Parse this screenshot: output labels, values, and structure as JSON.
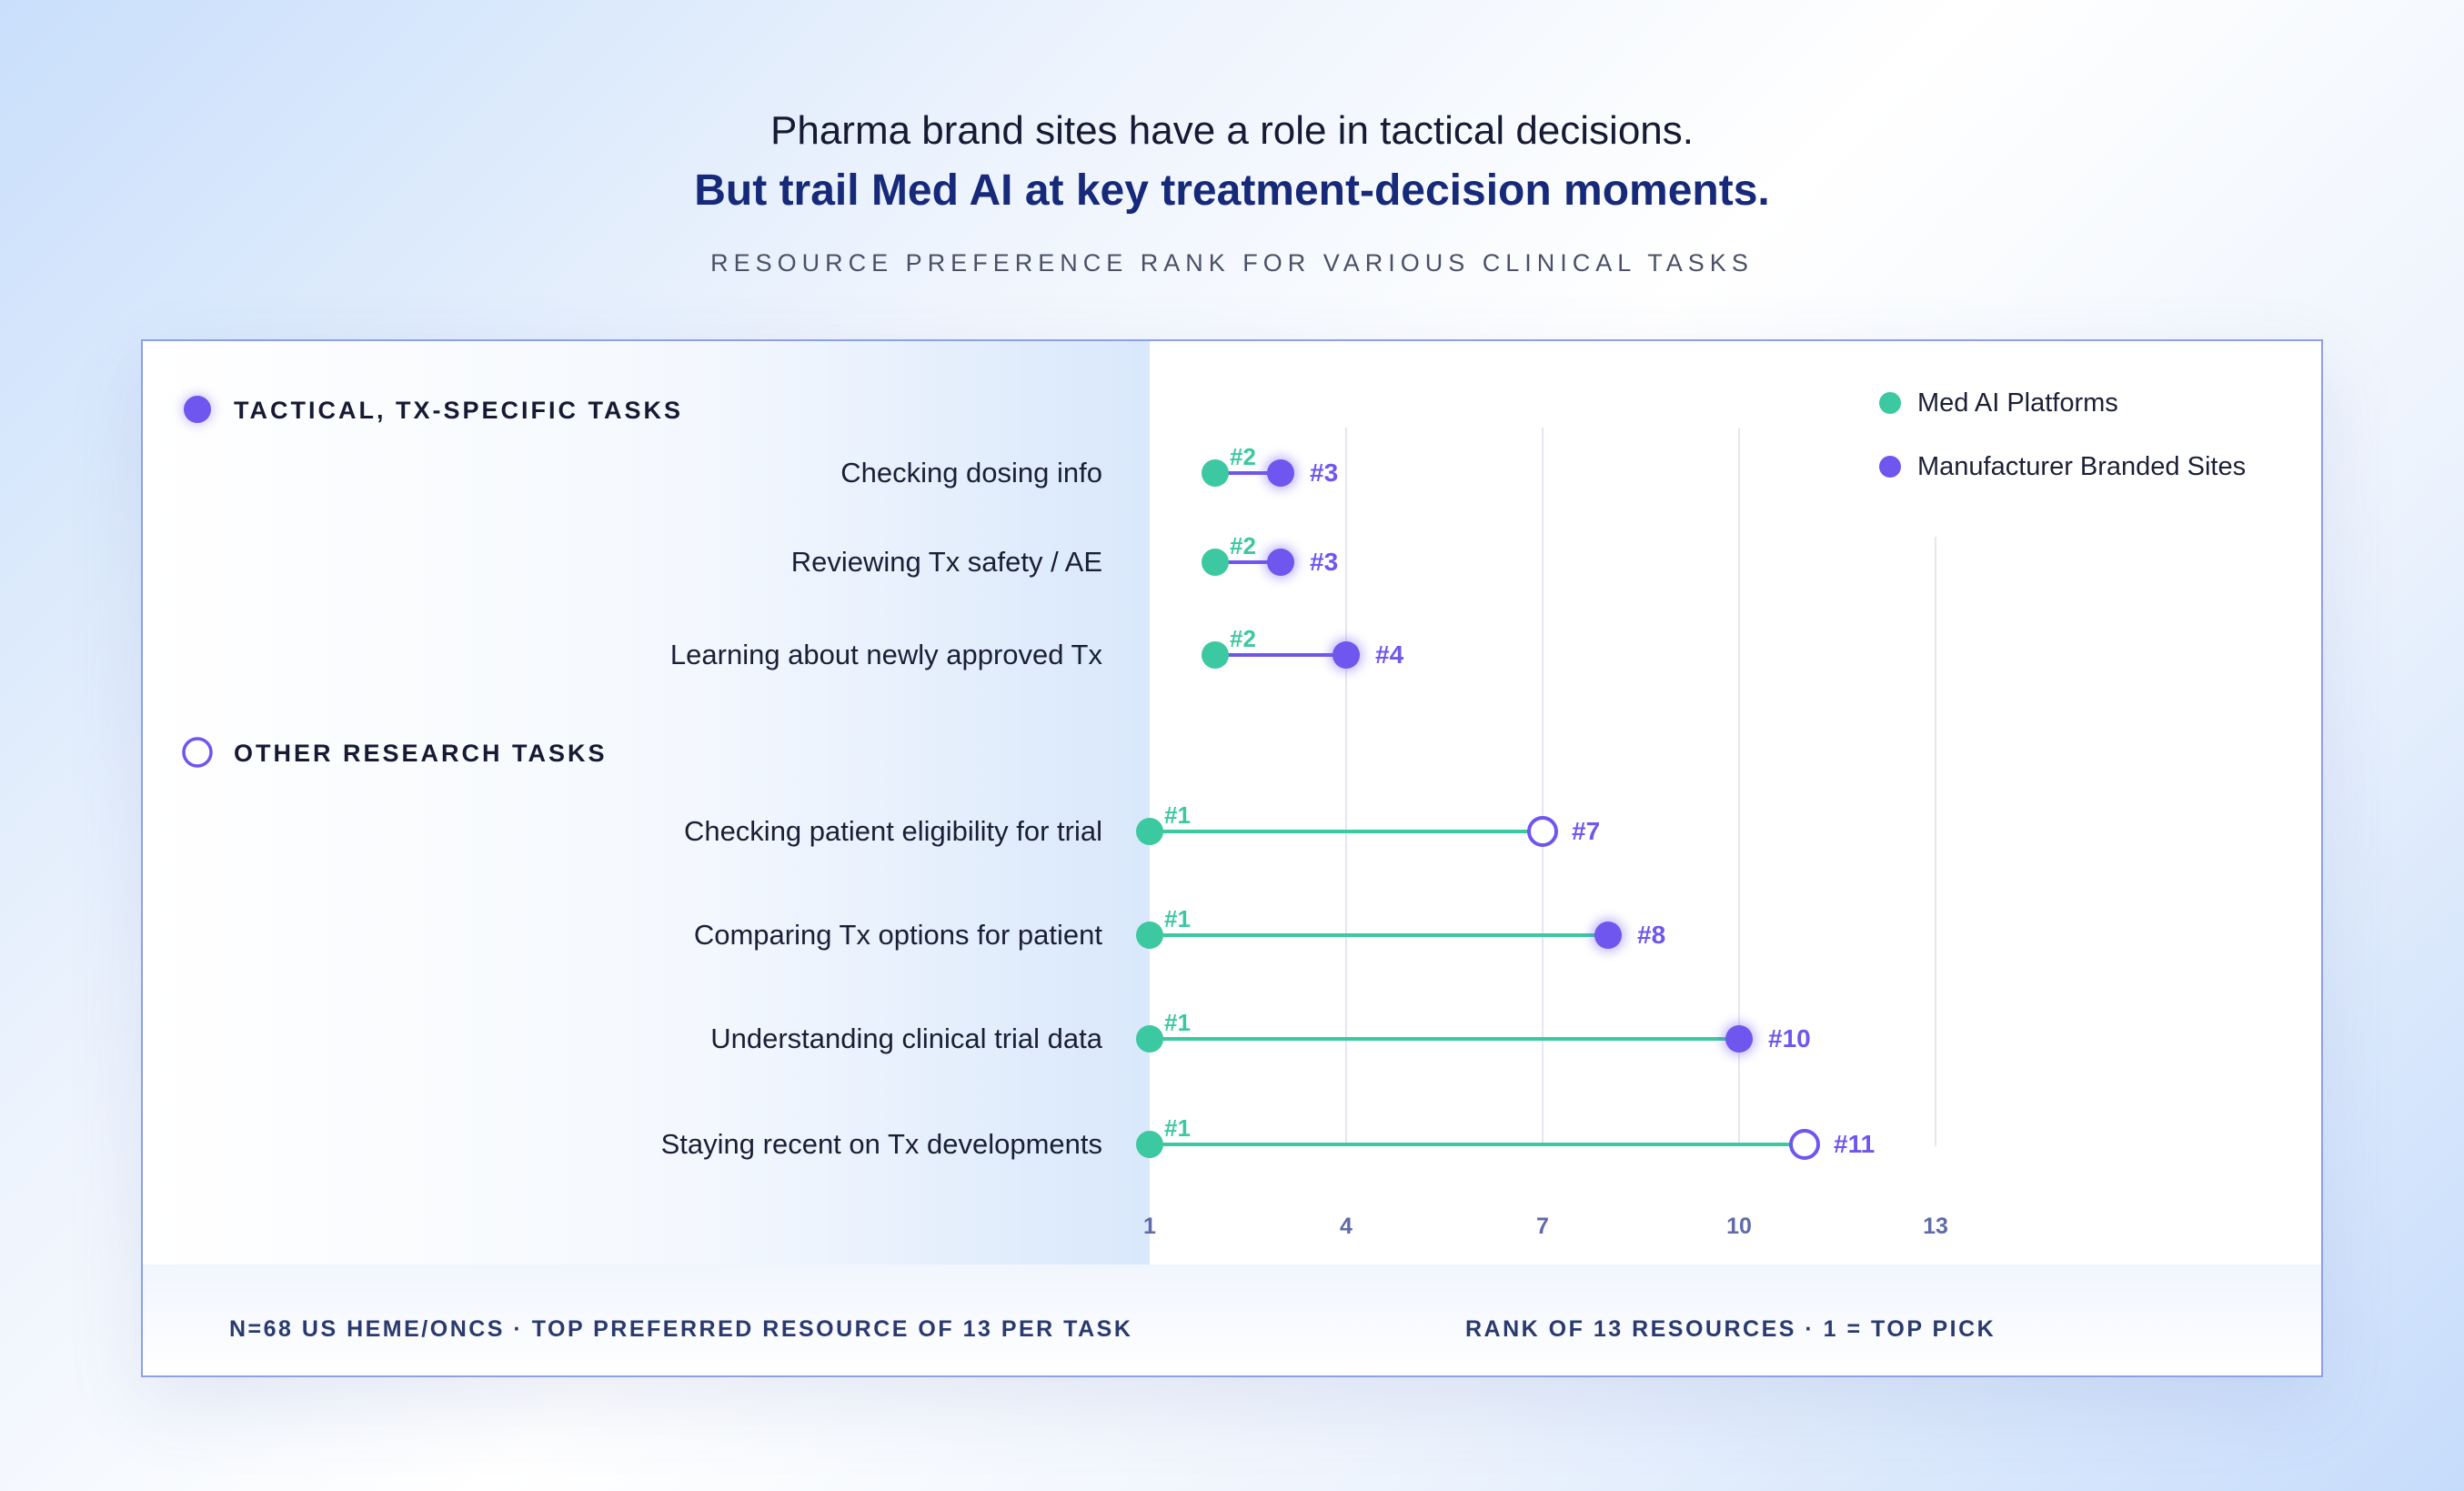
{
  "header": {
    "title_line1": "Pharma brand sites have a role in tactical decisions.",
    "title_line2": "But trail Med AI at key treatment-decision moments.",
    "subtitle": "RESOURCE PREFERENCE RANK FOR VARIOUS CLINICAL TASKS"
  },
  "footer": {
    "left": "N=68 US HEME/ONCS · TOP PREFERRED RESOURCE OF 13 PER TASK",
    "right": "RANK OF 13 RESOURCES · 1 = TOP PICK"
  },
  "colors": {
    "med_ai": "#3cc8a0",
    "manufacturer": "#6e56ee",
    "group_header": "#161a33",
    "title_accent": "#172a7a",
    "grid": "#e4e7f0",
    "tick": "#5f6aa8"
  },
  "chart_data": {
    "type": "dumbbell",
    "xlabel": "RANK OF 13 RESOURCES · 1 = TOP PICK",
    "xlim": [
      1,
      13
    ],
    "x_ticks": [
      "1",
      "4",
      "7",
      "10",
      "13"
    ],
    "legend": {
      "placement": "top-right",
      "items": [
        "Med AI Platforms",
        "Manufacturer Branded Sites"
      ]
    },
    "groups": [
      {
        "name": "TACTICAL, TX-SPECIFIC TASKS",
        "marker": "filled",
        "tasks": [
          {
            "label": "Checking dosing info",
            "med_ai_rank": 2,
            "manufacturer_rank": 3,
            "med_ai_label": "#2",
            "manufacturer_label": "#3",
            "manufacturer_marker": "filled"
          },
          {
            "label": "Reviewing Tx safety / AE",
            "med_ai_rank": 2,
            "manufacturer_rank": 3,
            "med_ai_label": "#2",
            "manufacturer_label": "#3",
            "manufacturer_marker": "filled"
          },
          {
            "label": "Learning about newly approved Tx",
            "med_ai_rank": 2,
            "manufacturer_rank": 4,
            "med_ai_label": "#2",
            "manufacturer_label": "#4",
            "manufacturer_marker": "filled"
          }
        ]
      },
      {
        "name": "OTHER RESEARCH TASKS",
        "marker": "hollow",
        "tasks": [
          {
            "label": "Checking patient eligibility for trial",
            "med_ai_rank": 1,
            "manufacturer_rank": 7,
            "med_ai_label": "#1",
            "manufacturer_label": "#7",
            "manufacturer_marker": "hollow"
          },
          {
            "label": "Comparing Tx options for patient",
            "med_ai_rank": 1,
            "manufacturer_rank": 8,
            "med_ai_label": "#1",
            "manufacturer_label": "#8",
            "manufacturer_marker": "filled"
          },
          {
            "label": "Understanding clinical trial data",
            "med_ai_rank": 1,
            "manufacturer_rank": 10,
            "med_ai_label": "#1",
            "manufacturer_label": "#10",
            "manufacturer_marker": "filled"
          },
          {
            "label": "Staying recent on Tx developments",
            "med_ai_rank": 1,
            "manufacturer_rank": 11,
            "med_ai_label": "#1",
            "manufacturer_label": "#11",
            "manufacturer_marker": "hollow"
          }
        ]
      }
    ]
  }
}
